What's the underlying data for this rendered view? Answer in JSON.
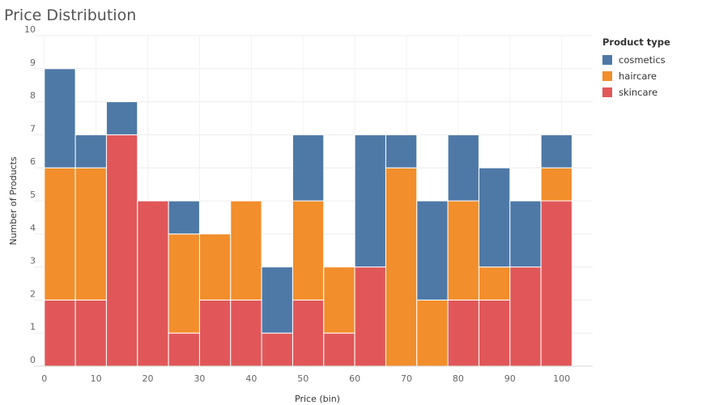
{
  "title": "Price Distribution",
  "chart_data": {
    "type": "bar",
    "stacked": true,
    "title": "Price Distribution",
    "xlabel": "Price (bin)",
    "ylabel": "Number of Products",
    "ylim": [
      0,
      10
    ],
    "yticks": [
      0,
      1,
      2,
      3,
      4,
      5,
      6,
      7,
      8,
      9,
      10
    ],
    "xlim": [
      -2,
      106
    ],
    "xticks": [
      0,
      10,
      20,
      30,
      40,
      50,
      60,
      70,
      80,
      90,
      100
    ],
    "bin_width": 6,
    "bins": [
      0,
      6,
      12,
      18,
      24,
      30,
      36,
      42,
      48,
      54,
      60,
      66,
      72,
      78,
      84,
      90,
      96
    ],
    "series": [
      {
        "name": "skincare",
        "color": "#e15759",
        "values": [
          2,
          2,
          7,
          5,
          1,
          2,
          2,
          1,
          2,
          1,
          3,
          0,
          0,
          2,
          2,
          3,
          5
        ]
      },
      {
        "name": "haircare",
        "color": "#f28e2b",
        "values": [
          4,
          4,
          0,
          0,
          3,
          2,
          3,
          0,
          3,
          2,
          0,
          6,
          2,
          3,
          1,
          0,
          1
        ]
      },
      {
        "name": "cosmetics",
        "color": "#4e79a7",
        "values": [
          3,
          1,
          1,
          0,
          1,
          0,
          0,
          2,
          2,
          0,
          4,
          1,
          3,
          2,
          3,
          2,
          1
        ]
      }
    ],
    "grid": true,
    "legend_position": "right"
  },
  "legend": {
    "title": "Product type",
    "items": [
      {
        "label": "cosmetics",
        "color": "#4e79a7"
      },
      {
        "label": "haircare",
        "color": "#f28e2b"
      },
      {
        "label": "skincare",
        "color": "#e15759"
      }
    ]
  }
}
